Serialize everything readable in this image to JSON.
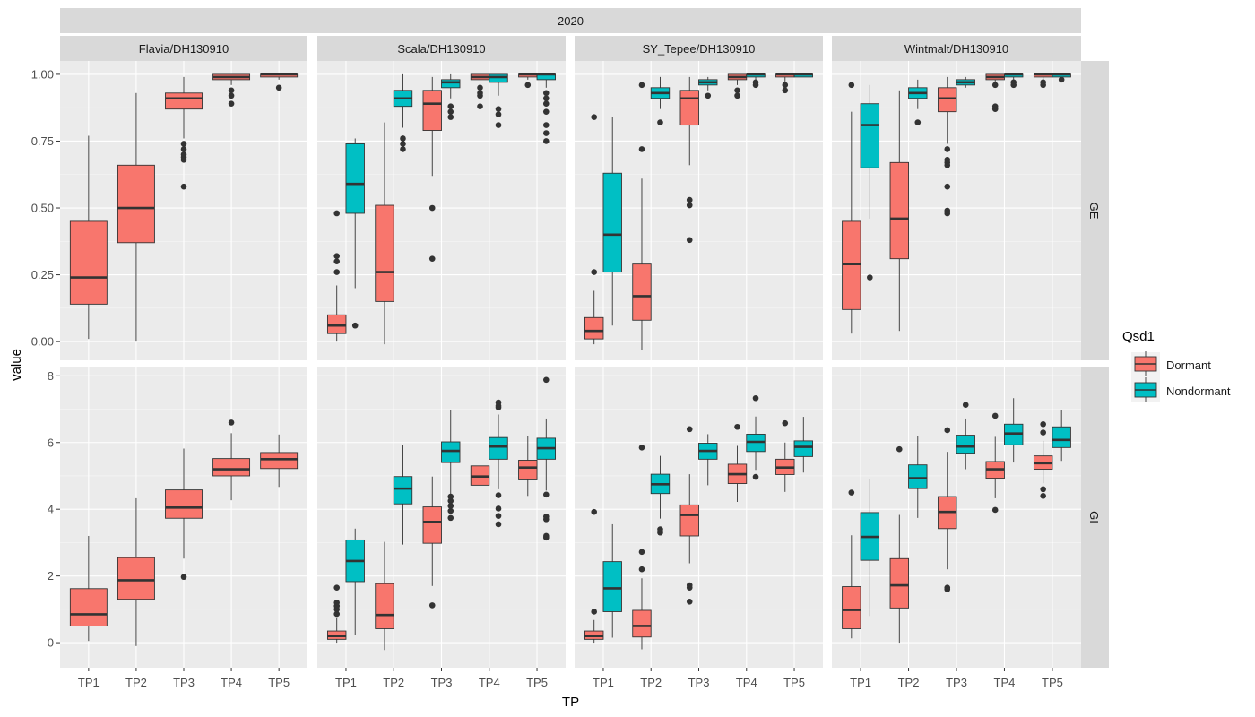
{
  "chart_data": {
    "type": "boxplot",
    "title": "2020",
    "xlabel": "TP",
    "ylabel": "value",
    "categories": [
      "TP1",
      "TP2",
      "TP3",
      "TP4",
      "TP5"
    ],
    "panels_col": [
      "Flavia/DH130910",
      "Scala/DH130910",
      "SY_Tepee/DH130910",
      "Wintmalt/DH130910"
    ],
    "panels_row": [
      "GE",
      "GI"
    ],
    "row_axes": {
      "GE": {
        "ylim": [
          -0.07,
          1.05
        ],
        "ticks": [
          0.0,
          0.25,
          0.5,
          0.75,
          1.0
        ],
        "tick_labels": [
          "0.00",
          "0.25",
          "0.50",
          "0.75",
          "1.00"
        ]
      },
      "GI": {
        "ylim": [
          -0.75,
          8.25
        ],
        "ticks": [
          0,
          2,
          4,
          6,
          8
        ],
        "tick_labels": [
          "0",
          "2",
          "4",
          "6",
          "8"
        ]
      }
    },
    "legend": {
      "title": "Qsd1",
      "position": "right",
      "entries": [
        {
          "name": "Dormant",
          "color": "#F8766D"
        },
        {
          "name": "Nondormant",
          "color": "#00BFC4"
        }
      ]
    },
    "colors": {
      "Dormant": "#F8766D",
      "Nondormant": "#00BFC4",
      "panel_bg": "#EBEBEB",
      "strip_bg": "#D9D9D9"
    },
    "boxes": [
      {
        "col": 0,
        "row": "GE",
        "x": "TP1",
        "group": "Dormant",
        "lw": 0.01,
        "q1": 0.14,
        "med": 0.24,
        "q3": 0.45,
        "uw": 0.77,
        "out": []
      },
      {
        "col": 0,
        "row": "GE",
        "x": "TP2",
        "group": "Dormant",
        "lw": 0.0,
        "q1": 0.37,
        "med": 0.5,
        "q3": 0.66,
        "uw": 0.93,
        "out": []
      },
      {
        "col": 0,
        "row": "GE",
        "x": "TP3",
        "group": "Dormant",
        "lw": 0.76,
        "q1": 0.87,
        "med": 0.91,
        "q3": 0.93,
        "uw": 0.99,
        "out": [
          0.58,
          0.68,
          0.69,
          0.7,
          0.72,
          0.74
        ]
      },
      {
        "col": 0,
        "row": "GE",
        "x": "TP4",
        "group": "Dormant",
        "lw": 0.96,
        "q1": 0.98,
        "med": 0.99,
        "q3": 1.0,
        "uw": 1.0,
        "out": [
          0.89,
          0.92,
          0.94
        ]
      },
      {
        "col": 0,
        "row": "GE",
        "x": "TP5",
        "group": "Dormant",
        "lw": 0.98,
        "q1": 0.99,
        "med": 1.0,
        "q3": 1.0,
        "uw": 1.0,
        "out": [
          0.95
        ]
      },
      {
        "col": 1,
        "row": "GE",
        "x": "TP1",
        "group": "Dormant",
        "lw": 0.0,
        "q1": 0.03,
        "med": 0.06,
        "q3": 0.1,
        "uw": 0.21,
        "out": [
          0.26,
          0.3,
          0.32,
          0.48
        ]
      },
      {
        "col": 1,
        "row": "GE",
        "x": "TP1",
        "group": "Nondormant",
        "lw": 0.2,
        "q1": 0.48,
        "med": 0.59,
        "q3": 0.74,
        "uw": 0.76,
        "out": [
          0.06
        ]
      },
      {
        "col": 1,
        "row": "GE",
        "x": "TP2",
        "group": "Dormant",
        "lw": -0.01,
        "q1": 0.15,
        "med": 0.26,
        "q3": 0.51,
        "uw": 0.82,
        "out": []
      },
      {
        "col": 1,
        "row": "GE",
        "x": "TP2",
        "group": "Nondormant",
        "lw": 0.8,
        "q1": 0.88,
        "med": 0.91,
        "q3": 0.94,
        "uw": 1.0,
        "out": [
          0.72,
          0.74,
          0.76
        ]
      },
      {
        "col": 1,
        "row": "GE",
        "x": "TP3",
        "group": "Dormant",
        "lw": 0.62,
        "q1": 0.79,
        "med": 0.89,
        "q3": 0.94,
        "uw": 0.99,
        "out": [
          0.31,
          0.5
        ]
      },
      {
        "col": 1,
        "row": "GE",
        "x": "TP3",
        "group": "Nondormant",
        "lw": 0.91,
        "q1": 0.95,
        "med": 0.97,
        "q3": 0.98,
        "uw": 1.0,
        "out": [
          0.84,
          0.86,
          0.88
        ]
      },
      {
        "col": 1,
        "row": "GE",
        "x": "TP4",
        "group": "Dormant",
        "lw": 0.97,
        "q1": 0.98,
        "med": 0.99,
        "q3": 1.0,
        "uw": 1.0,
        "out": [
          0.88,
          0.92,
          0.93,
          0.95
        ]
      },
      {
        "col": 1,
        "row": "GE",
        "x": "TP4",
        "group": "Nondormant",
        "lw": 0.92,
        "q1": 0.97,
        "med": 0.99,
        "q3": 1.0,
        "uw": 1.0,
        "out": [
          0.81,
          0.85,
          0.87
        ]
      },
      {
        "col": 1,
        "row": "GE",
        "x": "TP5",
        "group": "Dormant",
        "lw": 0.98,
        "q1": 0.99,
        "med": 1.0,
        "q3": 1.0,
        "uw": 1.0,
        "out": [
          0.96
        ]
      },
      {
        "col": 1,
        "row": "GE",
        "x": "TP5",
        "group": "Nondormant",
        "lw": 0.95,
        "q1": 0.98,
        "med": 1.0,
        "q3": 1.0,
        "uw": 1.0,
        "out": [
          0.75,
          0.78,
          0.81,
          0.86,
          0.89,
          0.91,
          0.93
        ]
      },
      {
        "col": 2,
        "row": "GE",
        "x": "TP1",
        "group": "Dormant",
        "lw": -0.01,
        "q1": 0.01,
        "med": 0.04,
        "q3": 0.09,
        "uw": 0.19,
        "out": [
          0.26,
          0.84
        ]
      },
      {
        "col": 2,
        "row": "GE",
        "x": "TP1",
        "group": "Nondormant",
        "lw": 0.06,
        "q1": 0.26,
        "med": 0.4,
        "q3": 0.63,
        "uw": 0.84,
        "out": []
      },
      {
        "col": 2,
        "row": "GE",
        "x": "TP2",
        "group": "Dormant",
        "lw": -0.03,
        "q1": 0.08,
        "med": 0.17,
        "q3": 0.29,
        "uw": 0.61,
        "out": [
          0.72,
          0.96
        ]
      },
      {
        "col": 2,
        "row": "GE",
        "x": "TP2",
        "group": "Nondormant",
        "lw": 0.87,
        "q1": 0.91,
        "med": 0.93,
        "q3": 0.95,
        "uw": 0.99,
        "out": [
          0.82
        ]
      },
      {
        "col": 2,
        "row": "GE",
        "x": "TP3",
        "group": "Dormant",
        "lw": 0.66,
        "q1": 0.81,
        "med": 0.91,
        "q3": 0.94,
        "uw": 0.99,
        "out": [
          0.38,
          0.51,
          0.53
        ]
      },
      {
        "col": 2,
        "row": "GE",
        "x": "TP3",
        "group": "Nondormant",
        "lw": 0.94,
        "q1": 0.96,
        "med": 0.97,
        "q3": 0.98,
        "uw": 0.99,
        "out": [
          0.92
        ]
      },
      {
        "col": 2,
        "row": "GE",
        "x": "TP4",
        "group": "Dormant",
        "lw": 0.96,
        "q1": 0.98,
        "med": 0.99,
        "q3": 1.0,
        "uw": 1.0,
        "out": [
          0.92,
          0.94
        ]
      },
      {
        "col": 2,
        "row": "GE",
        "x": "TP4",
        "group": "Nondormant",
        "lw": 0.98,
        "q1": 0.99,
        "med": 1.0,
        "q3": 1.0,
        "uw": 1.0,
        "out": [
          0.96,
          0.97
        ]
      },
      {
        "col": 2,
        "row": "GE",
        "x": "TP5",
        "group": "Dormant",
        "lw": 0.97,
        "q1": 0.99,
        "med": 1.0,
        "q3": 1.0,
        "uw": 1.0,
        "out": [
          0.94,
          0.96
        ]
      },
      {
        "col": 2,
        "row": "GE",
        "x": "TP5",
        "group": "Nondormant",
        "lw": 0.99,
        "q1": 0.99,
        "med": 1.0,
        "q3": 1.0,
        "uw": 1.0,
        "out": []
      },
      {
        "col": 3,
        "row": "GE",
        "x": "TP1",
        "group": "Dormant",
        "lw": 0.03,
        "q1": 0.12,
        "med": 0.29,
        "q3": 0.45,
        "uw": 0.86,
        "out": [
          0.96
        ]
      },
      {
        "col": 3,
        "row": "GE",
        "x": "TP1",
        "group": "Nondormant",
        "lw": 0.46,
        "q1": 0.65,
        "med": 0.81,
        "q3": 0.89,
        "uw": 0.96,
        "out": [
          0.24
        ]
      },
      {
        "col": 3,
        "row": "GE",
        "x": "TP2",
        "group": "Dormant",
        "lw": 0.04,
        "q1": 0.31,
        "med": 0.46,
        "q3": 0.67,
        "uw": 0.94,
        "out": []
      },
      {
        "col": 3,
        "row": "GE",
        "x": "TP2",
        "group": "Nondormant",
        "lw": 0.87,
        "q1": 0.91,
        "med": 0.93,
        "q3": 0.95,
        "uw": 0.98,
        "out": [
          0.82
        ]
      },
      {
        "col": 3,
        "row": "GE",
        "x": "TP3",
        "group": "Dormant",
        "lw": 0.74,
        "q1": 0.86,
        "med": 0.91,
        "q3": 0.95,
        "uw": 0.99,
        "out": [
          0.48,
          0.49,
          0.58,
          0.66,
          0.67,
          0.68,
          0.72
        ]
      },
      {
        "col": 3,
        "row": "GE",
        "x": "TP3",
        "group": "Nondormant",
        "lw": 0.95,
        "q1": 0.96,
        "med": 0.97,
        "q3": 0.98,
        "uw": 0.99,
        "out": []
      },
      {
        "col": 3,
        "row": "GE",
        "x": "TP4",
        "group": "Dormant",
        "lw": 0.97,
        "q1": 0.98,
        "med": 0.99,
        "q3": 1.0,
        "uw": 1.0,
        "out": [
          0.87,
          0.88,
          0.96
        ]
      },
      {
        "col": 3,
        "row": "GE",
        "x": "TP4",
        "group": "Nondormant",
        "lw": 0.98,
        "q1": 0.99,
        "med": 1.0,
        "q3": 1.0,
        "uw": 1.0,
        "out": [
          0.96,
          0.97
        ]
      },
      {
        "col": 3,
        "row": "GE",
        "x": "TP5",
        "group": "Dormant",
        "lw": 0.98,
        "q1": 0.99,
        "med": 1.0,
        "q3": 1.0,
        "uw": 1.0,
        "out": [
          0.96,
          0.97
        ]
      },
      {
        "col": 3,
        "row": "GE",
        "x": "TP5",
        "group": "Nondormant",
        "lw": 0.99,
        "q1": 0.99,
        "med": 1.0,
        "q3": 1.0,
        "uw": 1.0,
        "out": [
          0.98
        ]
      },
      {
        "col": 0,
        "row": "GI",
        "x": "TP1",
        "group": "Dormant",
        "lw": 0.05,
        "q1": 0.5,
        "med": 0.85,
        "q3": 1.62,
        "uw": 3.2,
        "out": []
      },
      {
        "col": 0,
        "row": "GI",
        "x": "TP2",
        "group": "Dormant",
        "lw": -0.1,
        "q1": 1.3,
        "med": 1.87,
        "q3": 2.55,
        "uw": 4.33,
        "out": []
      },
      {
        "col": 0,
        "row": "GI",
        "x": "TP3",
        "group": "Dormant",
        "lw": 2.52,
        "q1": 3.73,
        "med": 4.05,
        "q3": 4.58,
        "uw": 5.82,
        "out": [
          1.97
        ]
      },
      {
        "col": 0,
        "row": "GI",
        "x": "TP4",
        "group": "Dormant",
        "lw": 4.27,
        "q1": 5.0,
        "med": 5.2,
        "q3": 5.52,
        "uw": 6.28,
        "out": [
          6.6
        ]
      },
      {
        "col": 0,
        "row": "GI",
        "x": "TP5",
        "group": "Dormant",
        "lw": 4.67,
        "q1": 5.22,
        "med": 5.5,
        "q3": 5.7,
        "uw": 6.24,
        "out": []
      },
      {
        "col": 1,
        "row": "GI",
        "x": "TP1",
        "group": "Dormant",
        "lw": 0.0,
        "q1": 0.1,
        "med": 0.2,
        "q3": 0.35,
        "uw": 0.75,
        "out": [
          0.86,
          1.0,
          1.1,
          1.2,
          1.65
        ]
      },
      {
        "col": 1,
        "row": "GI",
        "x": "TP1",
        "group": "Nondormant",
        "lw": 0.22,
        "q1": 1.83,
        "med": 2.45,
        "q3": 3.08,
        "uw": 3.42,
        "out": []
      },
      {
        "col": 1,
        "row": "GI",
        "x": "TP2",
        "group": "Dormant",
        "lw": -0.22,
        "q1": 0.42,
        "med": 0.83,
        "q3": 1.77,
        "uw": 3.02,
        "out": []
      },
      {
        "col": 1,
        "row": "GI",
        "x": "TP2",
        "group": "Nondormant",
        "lw": 2.94,
        "q1": 4.16,
        "med": 4.62,
        "q3": 4.98,
        "uw": 5.94,
        "out": []
      },
      {
        "col": 1,
        "row": "GI",
        "x": "TP3",
        "group": "Dormant",
        "lw": 1.7,
        "q1": 2.98,
        "med": 3.62,
        "q3": 4.07,
        "uw": 4.98,
        "out": [
          1.12
        ]
      },
      {
        "col": 1,
        "row": "GI",
        "x": "TP3",
        "group": "Nondormant",
        "lw": 4.45,
        "q1": 5.4,
        "med": 5.75,
        "q3": 6.02,
        "uw": 6.98,
        "out": [
          3.74,
          3.95,
          4.1,
          4.25,
          4.38
        ]
      },
      {
        "col": 1,
        "row": "GI",
        "x": "TP4",
        "group": "Dormant",
        "lw": 4.07,
        "q1": 4.72,
        "med": 4.98,
        "q3": 5.3,
        "uw": 5.82,
        "out": []
      },
      {
        "col": 1,
        "row": "GI",
        "x": "TP4",
        "group": "Nondormant",
        "lw": 4.6,
        "q1": 5.5,
        "med": 5.88,
        "q3": 6.15,
        "uw": 6.84,
        "out": [
          3.55,
          3.8,
          4.02,
          4.42,
          7.05,
          7.1,
          7.2
        ]
      },
      {
        "col": 1,
        "row": "GI",
        "x": "TP5",
        "group": "Dormant",
        "lw": 4.4,
        "q1": 4.88,
        "med": 5.25,
        "q3": 5.47,
        "uw": 6.2,
        "out": []
      },
      {
        "col": 1,
        "row": "GI",
        "x": "TP5",
        "group": "Nondormant",
        "lw": 4.56,
        "q1": 5.5,
        "med": 5.83,
        "q3": 6.13,
        "uw": 6.72,
        "out": [
          3.15,
          3.2,
          3.7,
          3.78,
          4.44,
          7.88
        ]
      },
      {
        "col": 2,
        "row": "GI",
        "x": "TP1",
        "group": "Dormant",
        "lw": 0.0,
        "q1": 0.1,
        "med": 0.2,
        "q3": 0.35,
        "uw": 0.68,
        "out": [
          0.93,
          3.92
        ]
      },
      {
        "col": 2,
        "row": "GI",
        "x": "TP1",
        "group": "Nondormant",
        "lw": 0.15,
        "q1": 0.93,
        "med": 1.63,
        "q3": 2.43,
        "uw": 3.55,
        "out": []
      },
      {
        "col": 2,
        "row": "GI",
        "x": "TP2",
        "group": "Dormant",
        "lw": -0.2,
        "q1": 0.17,
        "med": 0.5,
        "q3": 0.97,
        "uw": 1.93,
        "out": [
          2.2,
          2.72,
          5.85
        ]
      },
      {
        "col": 2,
        "row": "GI",
        "x": "TP2",
        "group": "Nondormant",
        "lw": 3.72,
        "q1": 4.47,
        "med": 4.75,
        "q3": 5.05,
        "uw": 5.6,
        "out": [
          3.3,
          3.4
        ]
      },
      {
        "col": 2,
        "row": "GI",
        "x": "TP3",
        "group": "Dormant",
        "lw": 2.38,
        "q1": 3.2,
        "med": 3.83,
        "q3": 4.13,
        "uw": 5.05,
        "out": [
          1.23,
          1.65,
          1.72,
          6.4
        ]
      },
      {
        "col": 2,
        "row": "GI",
        "x": "TP3",
        "group": "Nondormant",
        "lw": 4.72,
        "q1": 5.5,
        "med": 5.75,
        "q3": 5.98,
        "uw": 6.25,
        "out": []
      },
      {
        "col": 2,
        "row": "GI",
        "x": "TP4",
        "group": "Dormant",
        "lw": 4.22,
        "q1": 4.77,
        "med": 5.05,
        "q3": 5.35,
        "uw": 5.9,
        "out": [
          6.47
        ]
      },
      {
        "col": 2,
        "row": "GI",
        "x": "TP4",
        "group": "Nondormant",
        "lw": 5.18,
        "q1": 5.73,
        "med": 6.02,
        "q3": 6.25,
        "uw": 6.78,
        "out": [
          4.97,
          7.33
        ]
      },
      {
        "col": 2,
        "row": "GI",
        "x": "TP5",
        "group": "Dormant",
        "lw": 4.52,
        "q1": 5.04,
        "med": 5.25,
        "q3": 5.5,
        "uw": 6.0,
        "out": [
          6.58
        ]
      },
      {
        "col": 2,
        "row": "GI",
        "x": "TP5",
        "group": "Nondormant",
        "lw": 5.1,
        "q1": 5.58,
        "med": 5.87,
        "q3": 6.05,
        "uw": 6.77,
        "out": []
      },
      {
        "col": 3,
        "row": "GI",
        "x": "TP1",
        "group": "Dormant",
        "lw": 0.13,
        "q1": 0.42,
        "med": 0.98,
        "q3": 1.68,
        "uw": 3.22,
        "out": [
          4.5
        ]
      },
      {
        "col": 3,
        "row": "GI",
        "x": "TP1",
        "group": "Nondormant",
        "lw": 0.8,
        "q1": 2.47,
        "med": 3.17,
        "q3": 3.9,
        "uw": 4.9,
        "out": []
      },
      {
        "col": 3,
        "row": "GI",
        "x": "TP2",
        "group": "Dormant",
        "lw": 0.0,
        "q1": 1.04,
        "med": 1.72,
        "q3": 2.52,
        "uw": 3.83,
        "out": [
          5.8
        ]
      },
      {
        "col": 3,
        "row": "GI",
        "x": "TP2",
        "group": "Nondormant",
        "lw": 3.74,
        "q1": 4.62,
        "med": 4.93,
        "q3": 5.33,
        "uw": 6.2,
        "out": []
      },
      {
        "col": 3,
        "row": "GI",
        "x": "TP3",
        "group": "Dormant",
        "lw": 2.2,
        "q1": 3.42,
        "med": 3.92,
        "q3": 4.38,
        "uw": 5.72,
        "out": [
          1.6,
          1.65,
          6.37
        ]
      },
      {
        "col": 3,
        "row": "GI",
        "x": "TP3",
        "group": "Nondormant",
        "lw": 5.2,
        "q1": 5.68,
        "med": 5.88,
        "q3": 6.22,
        "uw": 6.72,
        "out": [
          7.13
        ]
      },
      {
        "col": 3,
        "row": "GI",
        "x": "TP4",
        "group": "Dormant",
        "lw": 4.33,
        "q1": 4.93,
        "med": 5.2,
        "q3": 5.43,
        "uw": 6.17,
        "out": [
          3.98,
          6.8
        ]
      },
      {
        "col": 3,
        "row": "GI",
        "x": "TP4",
        "group": "Nondormant",
        "lw": 5.4,
        "q1": 5.93,
        "med": 6.27,
        "q3": 6.55,
        "uw": 7.33,
        "out": []
      },
      {
        "col": 3,
        "row": "GI",
        "x": "TP5",
        "group": "Dormant",
        "lw": 4.78,
        "q1": 5.2,
        "med": 5.38,
        "q3": 5.6,
        "uw": 6.05,
        "out": [
          4.4,
          4.6,
          6.3,
          6.55
        ]
      },
      {
        "col": 3,
        "row": "GI",
        "x": "TP5",
        "group": "Nondormant",
        "lw": 5.45,
        "q1": 5.85,
        "med": 6.08,
        "q3": 6.47,
        "uw": 6.97,
        "out": []
      }
    ]
  }
}
